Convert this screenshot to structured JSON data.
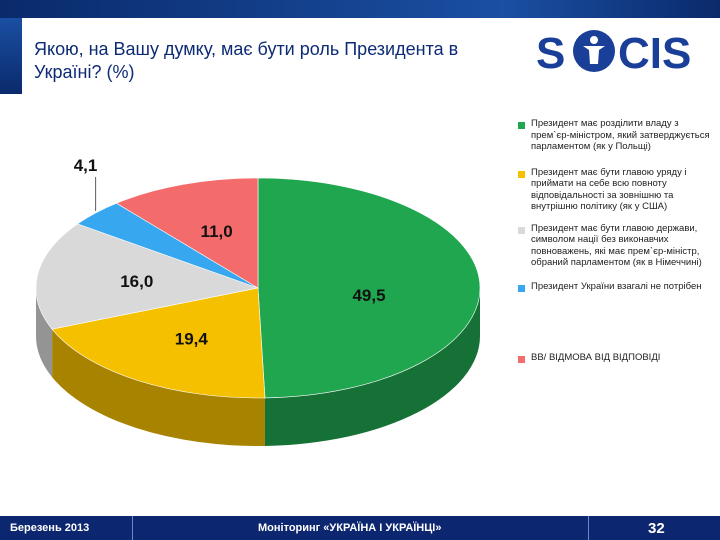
{
  "title": "Якою, на Вашу думку, має бути роль Президента в Україні? (%)",
  "logo": {
    "text": "SOCIS",
    "color": "#1a3f98"
  },
  "footer": {
    "left": "Березень 2013",
    "center": "Моніторинг «УКРАЇНА І УКРАЇНЦІ»",
    "page": "32"
  },
  "chart_data": {
    "type": "pie",
    "title": "Якою, на Вашу думку, має бути роль Президента в Україні? (%)",
    "slices": [
      {
        "label": "Президент має розділити владу з прем`єр-міністром, який затверджується парламентом (як у Польщі)",
        "value": 49.5,
        "value_label": "49,5",
        "color": "#21a650"
      },
      {
        "label": "Президент має бути главою уряду і приймати на себе всю повноту відповідальності за зовнішню та внутрішню політику (як у США)",
        "value": 19.4,
        "value_label": "19,4",
        "color": "#f5c000"
      },
      {
        "label": "Президент має бути главою держави, символом нації без виконавчих повноважень, які має прем`єр-міністр, обраний парламентом (як в Німеччині)",
        "value": 16.0,
        "value_label": "16,0",
        "color": "#d9d9d9"
      },
      {
        "label": "Президент України взагалі не потрібен",
        "value": 4.1,
        "value_label": "4,1",
        "color": "#37a7f0"
      },
      {
        "label": "ВВ/ ВІДМОВА ВІД ВІДПОВІДІ",
        "value": 11.0,
        "value_label": "11,0",
        "color": "#f36b6b"
      }
    ],
    "legend_position": "right"
  }
}
